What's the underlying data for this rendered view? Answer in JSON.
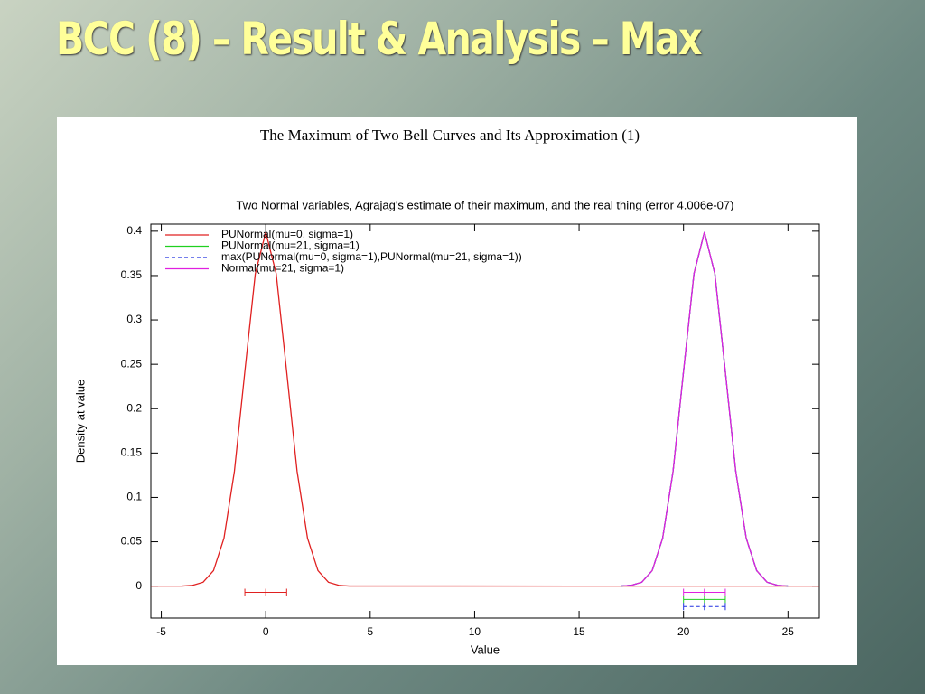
{
  "slide_title": "BCC (8) – Result & Analysis – Max",
  "chart_data": {
    "type": "line",
    "title": "The Maximum of Two Bell Curves and Its Approximation (1)",
    "subtitle": "Two Normal variables, Agrajag's estimate of their maximum, and the real thing (error 4.006e-07)",
    "xlabel": "Value",
    "ylabel": "Density at value",
    "xlim": [
      -5.5,
      26.5
    ],
    "ylim": [
      -0.036,
      0.408
    ],
    "xticks": [
      -5,
      0,
      5,
      10,
      15,
      20,
      25
    ],
    "yticks": [
      0,
      0.05,
      0.1,
      0.15,
      0.2,
      0.25,
      0.3,
      0.35,
      0.4
    ],
    "legend": "upper-left",
    "series": [
      {
        "name": "PUNormal(mu=0, sigma=1)",
        "color": "#e02020",
        "dash": false,
        "x": [
          -5.5,
          -4,
          -3.5,
          -3,
          -2.5,
          -2,
          -1.5,
          -1,
          -0.5,
          0,
          0.5,
          1,
          1.5,
          2,
          2.5,
          3,
          3.5,
          4,
          26.5
        ],
        "values": [
          0,
          0.0001,
          0.0009,
          0.0044,
          0.0175,
          0.054,
          0.1295,
          0.242,
          0.3521,
          0.3989,
          0.3521,
          0.242,
          0.1295,
          0.054,
          0.0175,
          0.0044,
          0.0009,
          0.0001,
          0
        ],
        "interval": {
          "y": -0.007,
          "low": -1,
          "mid": 0,
          "high": 1
        }
      },
      {
        "name": "PUNormal(mu=21, sigma=1)",
        "color": "#20d020",
        "dash": false,
        "x": [
          17,
          17.5,
          18,
          18.5,
          19,
          19.5,
          20,
          20.5,
          21,
          21.5,
          22,
          22.5,
          23,
          23.5,
          24,
          24.5,
          25
        ],
        "values": [
          0.0001,
          0.0009,
          0.0044,
          0.0175,
          0.054,
          0.1295,
          0.242,
          0.3521,
          0.3989,
          0.3521,
          0.242,
          0.1295,
          0.054,
          0.0175,
          0.0044,
          0.0009,
          0.0001
        ],
        "interval": {
          "y": -0.015,
          "low": 20,
          "mid": 21,
          "high": 22
        }
      },
      {
        "name": "max(PUNormal(mu=0, sigma=1),PUNormal(mu=21, sigma=1))",
        "color": "#2030e0",
        "dash": true,
        "x": [
          17,
          17.5,
          18,
          18.5,
          19,
          19.5,
          20,
          20.5,
          21,
          21.5,
          22,
          22.5,
          23,
          23.5,
          24,
          24.5,
          25
        ],
        "values": [
          0.0001,
          0.0009,
          0.0044,
          0.0175,
          0.054,
          0.1295,
          0.242,
          0.3521,
          0.3989,
          0.3521,
          0.242,
          0.1295,
          0.054,
          0.0175,
          0.0044,
          0.0009,
          0.0001
        ],
        "interval": {
          "y": -0.023,
          "low": 20,
          "mid": 21,
          "high": 22
        }
      },
      {
        "name": "Normal(mu=21, sigma=1)",
        "color": "#e020e0",
        "dash": false,
        "x": [
          17,
          17.5,
          18,
          18.5,
          19,
          19.5,
          20,
          20.5,
          21,
          21.5,
          22,
          22.5,
          23,
          23.5,
          24,
          24.5,
          25
        ],
        "values": [
          0.0001,
          0.0009,
          0.0044,
          0.0175,
          0.054,
          0.1295,
          0.242,
          0.3521,
          0.3989,
          0.3521,
          0.242,
          0.1295,
          0.054,
          0.0175,
          0.0044,
          0.0009,
          0.0001
        ],
        "interval": {
          "y": -0.007,
          "low": 20,
          "mid": 21,
          "high": 22
        }
      }
    ]
  }
}
